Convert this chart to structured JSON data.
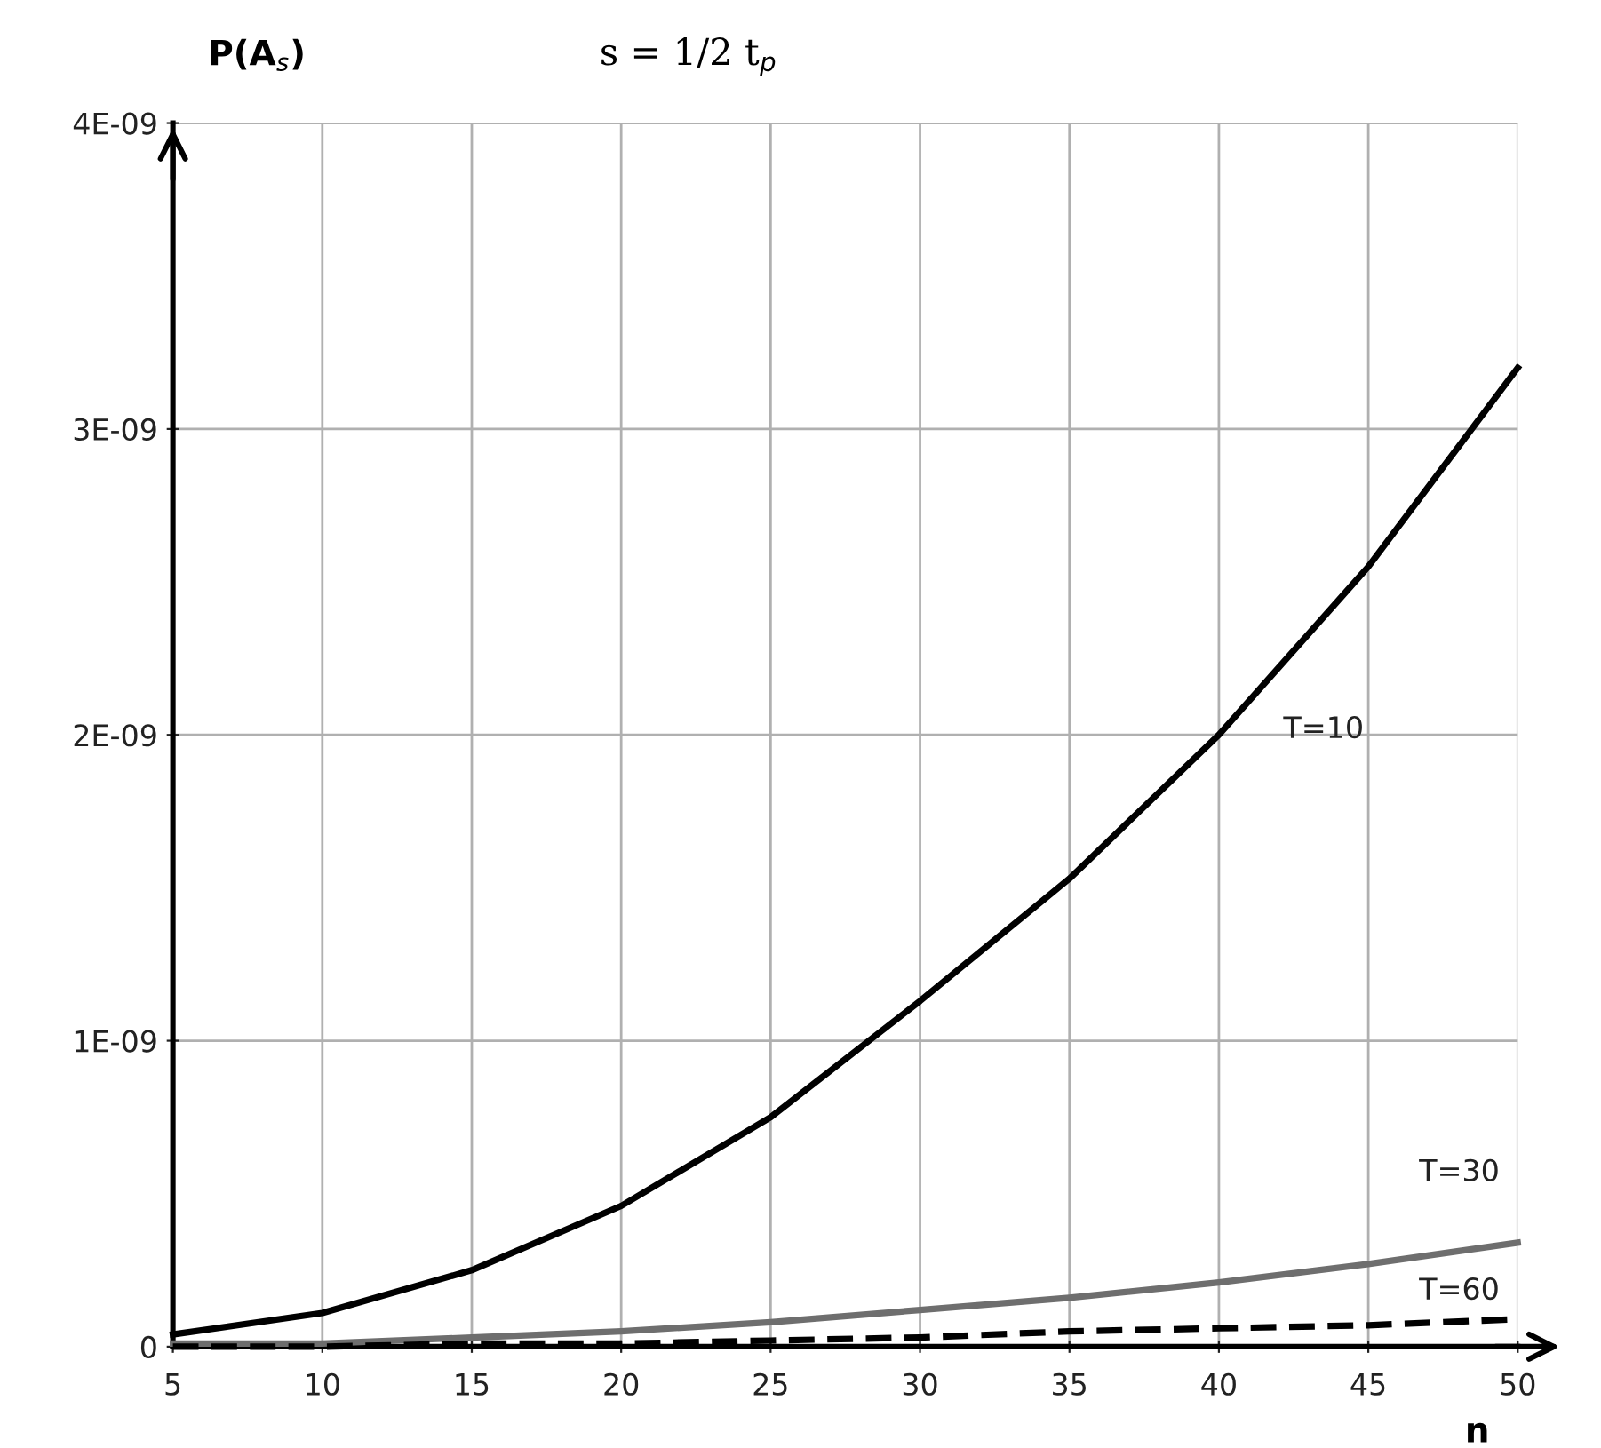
{
  "chart_data": {
    "type": "line",
    "title": "s = 1/2 t$_{p}$",
    "ylabel": "P(A$_{s}$)",
    "xlabel": "n",
    "x": [
      5,
      10,
      15,
      20,
      25,
      30,
      35,
      40,
      45,
      50
    ],
    "series": [
      {
        "name": "T=10",
        "color": "#000000",
        "line_style": "solid",
        "values": [
          4e-11,
          1.1e-10,
          2.5e-10,
          4.6e-10,
          7.5e-10,
          1.13e-09,
          1.53e-09,
          2e-09,
          2.55e-09,
          3.2e-09
        ]
      },
      {
        "name": "T=30",
        "color": "#6e6e6e",
        "line_style": "solid",
        "values": [
          1e-11,
          1e-11,
          3e-11,
          5e-11,
          8e-11,
          1.2e-10,
          1.6e-10,
          2.1e-10,
          2.7e-10,
          3.4e-10
        ]
      },
      {
        "name": "T=60",
        "color": "#000000",
        "line_style": "dashed",
        "values": [
          0,
          0,
          1e-11,
          1e-11,
          2e-11,
          3e-11,
          5e-11,
          6e-11,
          7e-11,
          9e-11
        ]
      }
    ],
    "xlim": [
      5,
      50
    ],
    "ylim": [
      0,
      4e-09
    ],
    "xticks": [
      5,
      10,
      15,
      20,
      25,
      30,
      35,
      40,
      45,
      50
    ],
    "yticks": [
      0,
      {
        "value": 1e-09,
        "label": "1E-09"
      },
      {
        "value": 2e-09,
        "label": "2E-09"
      },
      {
        "value": 3e-09,
        "label": "3E-09"
      },
      {
        "value": 4e-09,
        "label": "4E-09"
      }
    ],
    "grid": true,
    "legend": false,
    "marker": "none"
  }
}
